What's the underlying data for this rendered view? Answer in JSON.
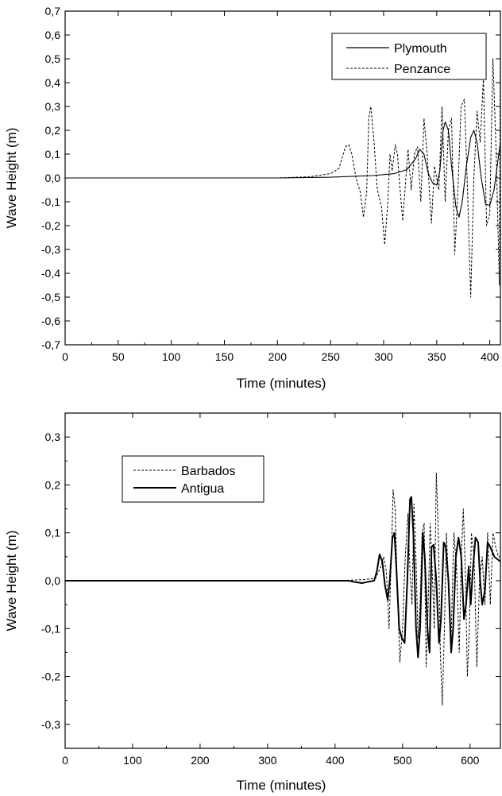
{
  "chart_data": [
    {
      "type": "line",
      "title": "",
      "xlabel": "Time (minutes)",
      "ylabel": "Wave Height (m)",
      "xlim": [
        0,
        410
      ],
      "ylim": [
        -0.7,
        0.7
      ],
      "x_ticks": [
        0,
        50,
        100,
        150,
        200,
        250,
        300,
        350,
        400
      ],
      "x_tick_labels": [
        "0",
        "50",
        "100",
        "150",
        "200",
        "250",
        "300",
        "350",
        "400"
      ],
      "y_ticks": [
        -0.7,
        -0.6,
        -0.5,
        -0.4,
        -0.3,
        -0.2,
        -0.1,
        0.0,
        0.1,
        0.2,
        0.3,
        0.4,
        0.5,
        0.6,
        0.7
      ],
      "y_tick_labels": [
        "-0,7",
        "-0,6",
        "-0,5",
        "-0,4",
        "-0,3",
        "-0,2",
        "-0,1",
        "0,0",
        "0,1",
        "0,2",
        "0,3",
        "0,4",
        "0,5",
        "0,6",
        "0,7"
      ],
      "legend_position": "top-right",
      "grid": false,
      "series": [
        {
          "name": "Plymouth",
          "style": "solid",
          "color": "#000000",
          "points": [
            [
              0,
              0
            ],
            [
              100,
              0
            ],
            [
              200,
              0
            ],
            [
              250,
              0.003
            ],
            [
              290,
              0.01
            ],
            [
              310,
              0.018
            ],
            [
              322,
              0.035
            ],
            [
              330,
              0.08
            ],
            [
              334,
              0.12
            ],
            [
              338,
              0.1
            ],
            [
              342,
              0.02
            ],
            [
              346,
              -0.02
            ],
            [
              350,
              -0.03
            ],
            [
              353,
              0.03
            ],
            [
              356,
              0.2
            ],
            [
              358,
              0.235
            ],
            [
              361,
              0.2
            ],
            [
              364,
              0.05
            ],
            [
              368,
              -0.12
            ],
            [
              371,
              -0.165
            ],
            [
              374,
              -0.1
            ],
            [
              378,
              0.05
            ],
            [
              382,
              0.17
            ],
            [
              385,
              0.2
            ],
            [
              388,
              0.15
            ],
            [
              392,
              0.0
            ],
            [
              396,
              -0.11
            ],
            [
              400,
              -0.115
            ],
            [
              404,
              -0.05
            ],
            [
              407,
              0.05
            ],
            [
              410,
              0.15
            ]
          ]
        },
        {
          "name": "Penzance",
          "style": "dashed",
          "color": "#000000",
          "points": [
            [
              0,
              0
            ],
            [
              100,
              0
            ],
            [
              200,
              0
            ],
            [
              230,
              0.005
            ],
            [
              250,
              0.018
            ],
            [
              258,
              0.04
            ],
            [
              264,
              0.13
            ],
            [
              267,
              0.14
            ],
            [
              270,
              0.1
            ],
            [
              274,
              0.0
            ],
            [
              278,
              -0.06
            ],
            [
              281,
              -0.165
            ],
            [
              284,
              -0.06
            ],
            [
              286,
              0.25
            ],
            [
              288,
              0.3
            ],
            [
              291,
              0.15
            ],
            [
              294,
              -0.05
            ],
            [
              298,
              -0.12
            ],
            [
              301,
              -0.28
            ],
            [
              304,
              -0.1
            ],
            [
              306,
              0.1
            ],
            [
              308,
              0.03
            ],
            [
              311,
              0.14
            ],
            [
              313,
              0.1
            ],
            [
              315,
              -0.02
            ],
            [
              318,
              -0.18
            ],
            [
              321,
              0.0
            ],
            [
              323,
              0.12
            ],
            [
              326,
              -0.05
            ],
            [
              329,
              0.1
            ],
            [
              332,
              0.13
            ],
            [
              335,
              -0.1
            ],
            [
              338,
              0.25
            ],
            [
              341,
              0.1
            ],
            [
              345,
              -0.19
            ],
            [
              348,
              0.05
            ],
            [
              352,
              -0.05
            ],
            [
              355,
              0.3
            ],
            [
              358,
              -0.1
            ],
            [
              361,
              0.2
            ],
            [
              364,
              0.25
            ],
            [
              367,
              -0.32
            ],
            [
              370,
              -0.05
            ],
            [
              373,
              0.3
            ],
            [
              376,
              0.33
            ],
            [
              379,
              -0.05
            ],
            [
              382,
              -0.5
            ],
            [
              385,
              0.0
            ],
            [
              388,
              0.28
            ],
            [
              391,
              0.15
            ],
            [
              394,
              0.42
            ],
            [
              397,
              -0.2
            ],
            [
              400,
              -0.15
            ],
            [
              403,
              0.5
            ],
            [
              406,
              0.1
            ],
            [
              409,
              -0.45
            ],
            [
              410,
              0.6
            ]
          ]
        }
      ]
    },
    {
      "type": "line",
      "title": "",
      "xlabel": "Time (minutes)",
      "ylabel": "Wave Height (m)",
      "xlim": [
        0,
        645
      ],
      "ylim": [
        -0.35,
        0.35
      ],
      "x_ticks": [
        0,
        100,
        200,
        300,
        400,
        500,
        600
      ],
      "x_tick_labels": [
        "0",
        "100",
        "200",
        "300",
        "400",
        "500",
        "600"
      ],
      "y_ticks": [
        -0.3,
        -0.2,
        -0.1,
        0.0,
        0.1,
        0.2,
        0.3
      ],
      "y_tick_labels": [
        "-0,3",
        "-0,2",
        "-0,1",
        "0,0",
        "0,1",
        "0,2",
        "0,3"
      ],
      "legend_position": "top-left",
      "grid": false,
      "series": [
        {
          "name": "Barbados",
          "style": "dashed",
          "color": "#000000",
          "points": [
            [
              0,
              0
            ],
            [
              400,
              0
            ],
            [
              440,
              0.002
            ],
            [
              460,
              0.005
            ],
            [
              468,
              0.03
            ],
            [
              472,
              0.05
            ],
            [
              476,
              0.02
            ],
            [
              480,
              -0.1
            ],
            [
              484,
              0.08
            ],
            [
              486,
              0.19
            ],
            [
              489,
              0.15
            ],
            [
              492,
              0.0
            ],
            [
              496,
              -0.17
            ],
            [
              500,
              -0.1
            ],
            [
              504,
              0.05
            ],
            [
              508,
              0.14
            ],
            [
              511,
              0.02
            ],
            [
              514,
              -0.05
            ],
            [
              517,
              0.16
            ],
            [
              520,
              0.04
            ],
            [
              523,
              -0.12
            ],
            [
              526,
              -0.05
            ],
            [
              529,
              0.1
            ],
            [
              532,
              0.12
            ],
            [
              535,
              -0.18
            ],
            [
              538,
              -0.05
            ],
            [
              541,
              0.12
            ],
            [
              544,
              0.02
            ],
            [
              547,
              -0.1
            ],
            [
              550,
              0.225
            ],
            [
              553,
              0.1
            ],
            [
              556,
              -0.15
            ],
            [
              559,
              -0.26
            ],
            [
              562,
              -0.1
            ],
            [
              565,
              0.1
            ],
            [
              568,
              0.0
            ],
            [
              572,
              -0.12
            ],
            [
              576,
              0.1
            ],
            [
              580,
              0.03
            ],
            [
              584,
              -0.15
            ],
            [
              587,
              0.05
            ],
            [
              590,
              0.15
            ],
            [
              593,
              0.02
            ],
            [
              596,
              -0.2
            ],
            [
              599,
              -0.1
            ],
            [
              602,
              0.1
            ],
            [
              606,
              0.05
            ],
            [
              610,
              -0.18
            ],
            [
              614,
              0.0
            ],
            [
              618,
              0.05
            ],
            [
              622,
              -0.05
            ],
            [
              626,
              0.1
            ],
            [
              630,
              -0.05
            ],
            [
              634,
              0.1
            ],
            [
              638,
              0.07
            ],
            [
              642,
              0.05
            ],
            [
              645,
              0.05
            ]
          ]
        },
        {
          "name": "Antigua",
          "style": "solid",
          "color": "#000000",
          "points": [
            [
              0,
              0
            ],
            [
              400,
              0
            ],
            [
              420,
              0
            ],
            [
              430,
              -0.003
            ],
            [
              440,
              -0.005
            ],
            [
              450,
              -0.002
            ],
            [
              458,
              0.0
            ],
            [
              462,
              0.02
            ],
            [
              466,
              0.055
            ],
            [
              470,
              0.04
            ],
            [
              474,
              -0.01
            ],
            [
              478,
              -0.04
            ],
            [
              481,
              0.0
            ],
            [
              485,
              0.09
            ],
            [
              488,
              0.1
            ],
            [
              491,
              0.02
            ],
            [
              495,
              -0.1
            ],
            [
              499,
              -0.12
            ],
            [
              503,
              -0.13
            ],
            [
              507,
              0.0
            ],
            [
              511,
              0.17
            ],
            [
              513,
              0.175
            ],
            [
              516,
              0.1
            ],
            [
              520,
              -0.1
            ],
            [
              523,
              -0.16
            ],
            [
              526,
              -0.1
            ],
            [
              530,
              0.1
            ],
            [
              533,
              0.05
            ],
            [
              537,
              -0.1
            ],
            [
              540,
              -0.15
            ],
            [
              543,
              0.07
            ],
            [
              546,
              0.075
            ],
            [
              550,
              0.0
            ],
            [
              554,
              -0.13
            ],
            [
              557,
              -0.08
            ],
            [
              561,
              0.08
            ],
            [
              564,
              0.07
            ],
            [
              568,
              0.0
            ],
            [
              572,
              -0.15
            ],
            [
              575,
              -0.1
            ],
            [
              579,
              0.05
            ],
            [
              583,
              0.09
            ],
            [
              587,
              0.05
            ],
            [
              591,
              -0.08
            ],
            [
              594,
              -0.05
            ],
            [
              598,
              0.03
            ],
            [
              601,
              -0.05
            ],
            [
              604,
              0.02
            ],
            [
              608,
              0.09
            ],
            [
              612,
              0.08
            ],
            [
              615,
              0.0
            ],
            [
              618,
              -0.05
            ],
            [
              622,
              -0.02
            ],
            [
              626,
              0.08
            ],
            [
              630,
              0.07
            ],
            [
              636,
              0.05
            ],
            [
              645,
              0.04
            ]
          ]
        }
      ]
    }
  ]
}
